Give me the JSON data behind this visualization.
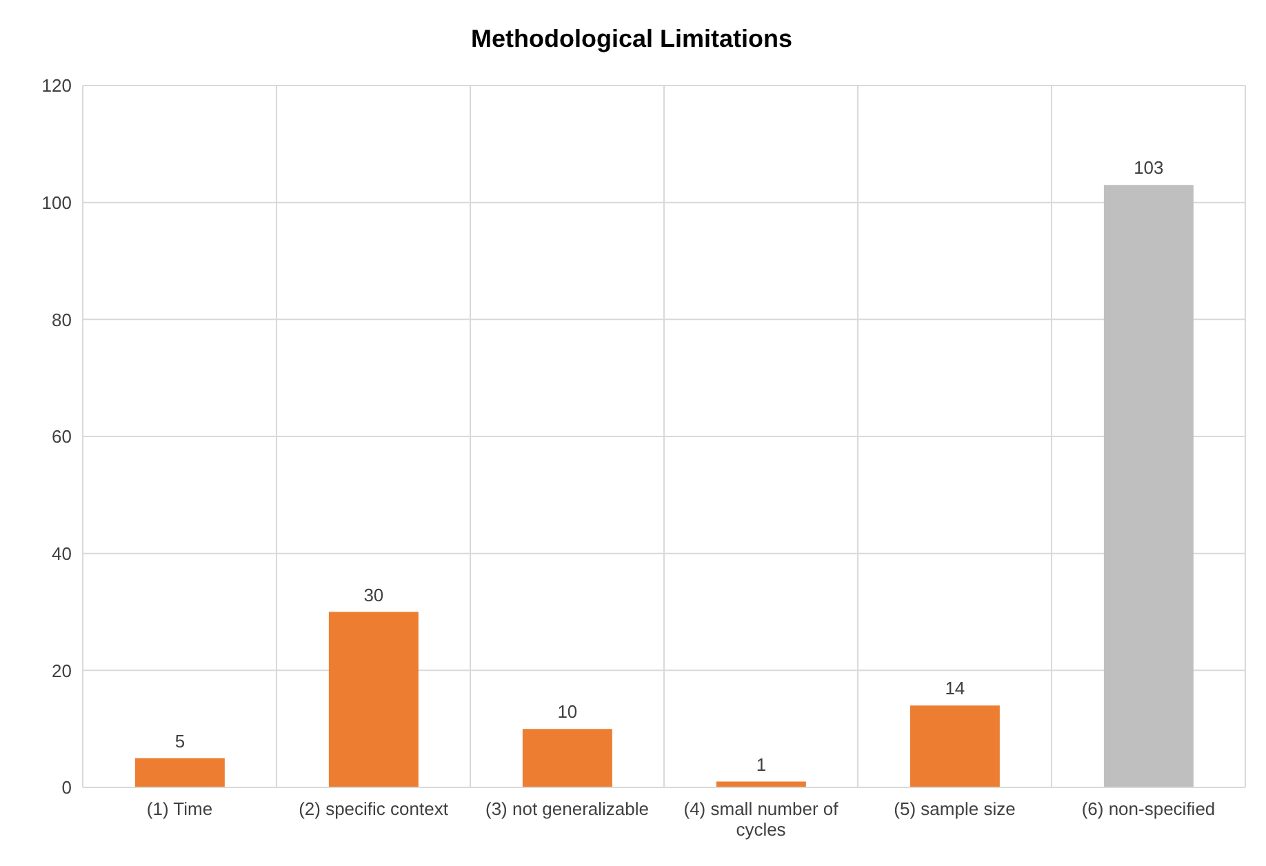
{
  "chart_data": {
    "type": "bar",
    "title": "Methodological Limitations",
    "categories": [
      "(1) Time",
      "(2) specific context",
      "(3) not generalizable",
      "(4) small number of cycles",
      "(5) sample size",
      "(6) non-specified"
    ],
    "values": [
      5,
      30,
      10,
      1,
      14,
      103
    ],
    "colors": [
      "#ed7d31",
      "#ed7d31",
      "#ed7d31",
      "#ed7d31",
      "#ed7d31",
      "#bfbfbf"
    ],
    "ylim": [
      0,
      120
    ],
    "yticks": [
      0,
      20,
      40,
      60,
      80,
      100,
      120
    ],
    "grid": true,
    "data_labels": true
  }
}
